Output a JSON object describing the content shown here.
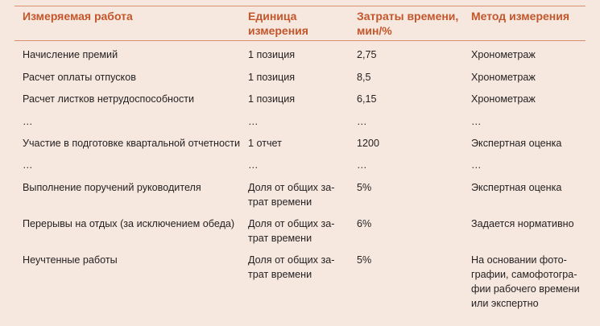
{
  "table": {
    "headers": [
      [
        "Измеряемая работа"
      ],
      [
        "Единица",
        "измерения"
      ],
      [
        "Затраты времени,",
        "мин/%"
      ],
      [
        "Метод измерения"
      ]
    ],
    "rows": [
      [
        [
          "Начисление премий"
        ],
        [
          "1 позиция"
        ],
        [
          "2,75"
        ],
        [
          "Хронометраж"
        ]
      ],
      [
        [
          "Расчет оплаты отпусков"
        ],
        [
          "1 позиция"
        ],
        [
          "8,5"
        ],
        [
          "Хронометраж"
        ]
      ],
      [
        [
          "Расчет листков нетрудоспособности"
        ],
        [
          "1 позиция"
        ],
        [
          "6,15"
        ],
        [
          "Хронометраж"
        ]
      ],
      [
        [
          "…"
        ],
        [
          "…"
        ],
        [
          "…"
        ],
        [
          "…"
        ]
      ],
      [
        [
          "Участие в подготовке квартальной отчетности"
        ],
        [
          "1 отчет"
        ],
        [
          "1200"
        ],
        [
          "Экспертная оценка"
        ]
      ],
      [
        [
          "…"
        ],
        [
          "…"
        ],
        [
          "…"
        ],
        [
          "…"
        ]
      ],
      [
        [
          "Выполнение поручений руководителя"
        ],
        [
          "Доля от общих за-",
          "трат времени"
        ],
        [
          "5%"
        ],
        [
          "Экспертная оценка"
        ]
      ],
      [
        [
          "Перерывы на отдых (за исключением обеда)"
        ],
        [
          "Доля от общих за-",
          "трат времени"
        ],
        [
          "6%"
        ],
        [
          "Задается нормативно"
        ]
      ],
      [
        [
          "Неучтенные работы"
        ],
        [
          "Доля от общих за-",
          "трат времени"
        ],
        [
          "5%"
        ],
        [
          "На основании фото-",
          "графии, самофотогра-",
          "фии рабочего времени",
          "или экспертно"
        ]
      ]
    ]
  },
  "colors": {
    "background": "#f6e8df",
    "header_text": "#c4562b",
    "rule": "#d9906f"
  }
}
